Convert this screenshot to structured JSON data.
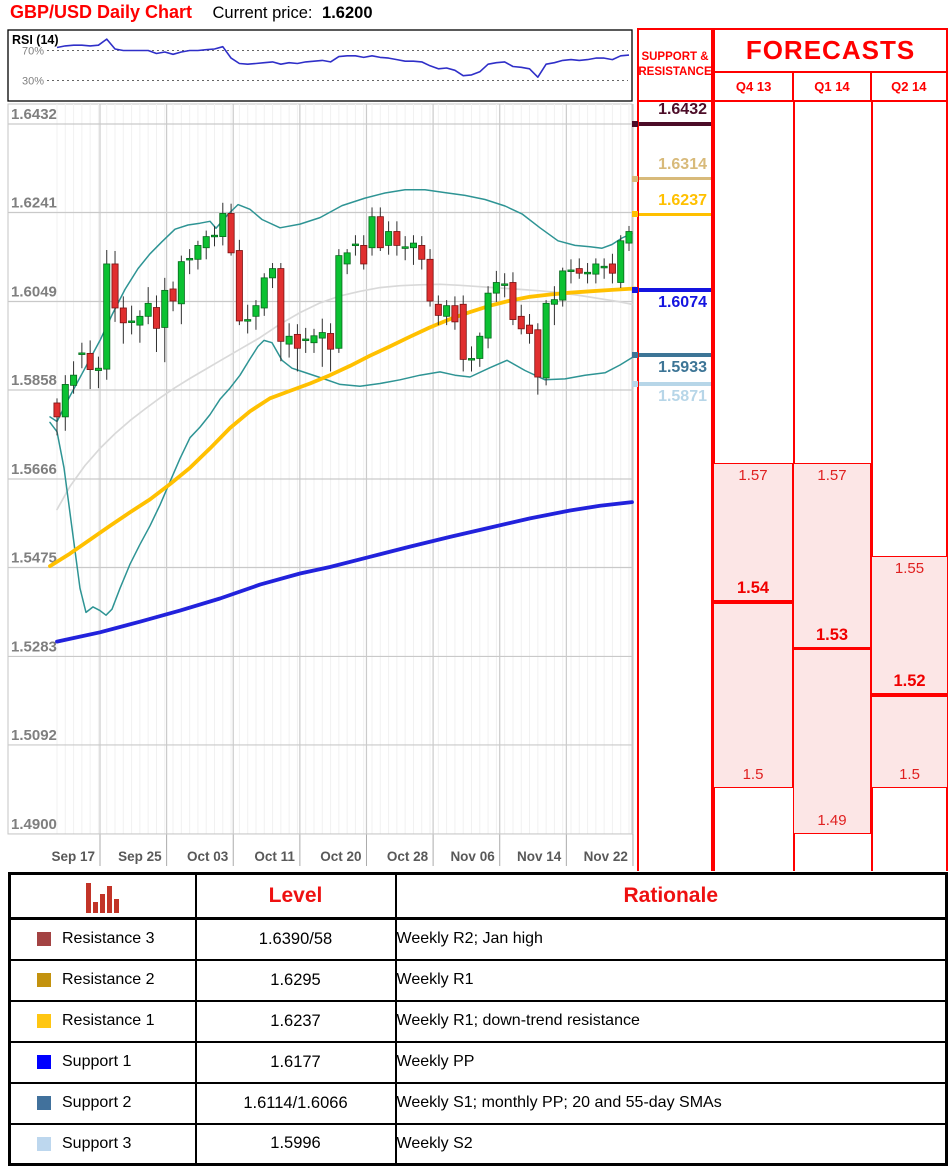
{
  "header": {
    "title": "GBP/USD Daily Chart",
    "current_price_label": "Current price:",
    "current_price": "1.6200"
  },
  "chart_data": {
    "type": "candlestick",
    "title": "GBP/USD Daily Chart",
    "ylim": [
      1.49,
      1.6432
    ],
    "y_axis_labels": [
      "1.6432",
      "1.6241",
      "1.6049",
      "1.5858",
      "1.5666",
      "1.5475",
      "1.5283",
      "1.5092",
      "1.4900"
    ],
    "x_axis_labels": [
      "Sep 17",
      "Sep 25",
      "Oct 03",
      "Oct 11",
      "Oct 20",
      "Oct 28",
      "Nov 06",
      "Nov 14",
      "Nov 22"
    ],
    "grid": true,
    "colors": {
      "up": "#0BC132",
      "down": "#E02F2F",
      "bb": "#2E9494",
      "sma55": "#FFC000",
      "sma200": "#2222DC",
      "sma100": "#D9D9D9"
    },
    "candles": [
      [
        1.583,
        1.584,
        1.576,
        1.58
      ],
      [
        1.58,
        1.589,
        1.577,
        1.587
      ],
      [
        1.5868,
        1.592,
        1.585,
        1.589
      ],
      [
        1.5935,
        1.596,
        1.5905,
        1.5938
      ],
      [
        1.5937,
        1.5965,
        1.586,
        1.5902
      ],
      [
        1.59,
        1.593,
        1.5862,
        1.5905
      ],
      [
        1.5903,
        1.616,
        1.588,
        1.613
      ],
      [
        1.613,
        1.6158,
        1.6005,
        1.6035
      ],
      [
        1.6035,
        1.606,
        1.5958,
        1.6003
      ],
      [
        1.6007,
        1.604,
        1.5978,
        1.6007
      ],
      [
        1.5998,
        1.603,
        1.596,
        1.6017
      ],
      [
        1.6017,
        1.608,
        1.6,
        1.6045
      ],
      [
        1.6036,
        1.6062,
        1.594,
        1.5991
      ],
      [
        1.5993,
        1.61,
        1.5918,
        1.6073
      ],
      [
        1.6076,
        1.6092,
        1.6028,
        1.605
      ],
      [
        1.6044,
        1.6148,
        1.6,
        1.6135
      ],
      [
        1.614,
        1.6162,
        1.6108,
        1.6142
      ],
      [
        1.614,
        1.618,
        1.6118,
        1.617
      ],
      [
        1.6165,
        1.6202,
        1.614,
        1.6189
      ],
      [
        1.619,
        1.6212,
        1.6168,
        1.6192
      ],
      [
        1.6189,
        1.6262,
        1.617,
        1.6239
      ],
      [
        1.6239,
        1.626,
        1.6148,
        1.6154
      ],
      [
        1.6159,
        1.6182,
        1.5998,
        1.6007
      ],
      [
        1.6007,
        1.6042,
        1.598,
        1.601
      ],
      [
        1.6017,
        1.6052,
        1.5988,
        1.604
      ],
      [
        1.6035,
        1.611,
        1.6018,
        1.61
      ],
      [
        1.61,
        1.6132,
        1.6078,
        1.612
      ],
      [
        1.612,
        1.6132,
        1.592,
        1.5963
      ],
      [
        1.5957,
        1.6002,
        1.5928,
        1.5974
      ],
      [
        1.5978,
        1.6,
        1.5898,
        1.5948
      ],
      [
        1.5968,
        1.5992,
        1.5938,
        1.5968
      ],
      [
        1.596,
        1.599,
        1.5938,
        1.5975
      ],
      [
        1.597,
        1.6012,
        1.5908,
        1.5982
      ],
      [
        1.598,
        1.6002,
        1.5898,
        1.5946
      ],
      [
        1.5948,
        1.6162,
        1.5938,
        1.6148
      ],
      [
        1.613,
        1.6162,
        1.6108,
        1.6154
      ],
      [
        1.6173,
        1.6192,
        1.6148,
        1.6173
      ],
      [
        1.617,
        1.6192,
        1.6118,
        1.613
      ],
      [
        1.6165,
        1.6252,
        1.6148,
        1.6232
      ],
      [
        1.6232,
        1.6252,
        1.6158,
        1.6165
      ],
      [
        1.617,
        1.6222,
        1.615,
        1.62
      ],
      [
        1.62,
        1.6222,
        1.6148,
        1.617
      ],
      [
        1.6167,
        1.619,
        1.6138,
        1.6167
      ],
      [
        1.6165,
        1.6192,
        1.6128,
        1.6175
      ],
      [
        1.617,
        1.619,
        1.6118,
        1.614
      ],
      [
        1.614,
        1.6162,
        1.6038,
        1.605
      ],
      [
        1.6043,
        1.6062,
        1.5998,
        1.6019
      ],
      [
        1.6017,
        1.6052,
        1.5998,
        1.604
      ],
      [
        1.604,
        1.606,
        1.5988,
        1.6005
      ],
      [
        1.6043,
        1.6062,
        1.5898,
        1.5924
      ],
      [
        1.5926,
        1.5952,
        1.5898,
        1.5926
      ],
      [
        1.5926,
        1.5982,
        1.5908,
        1.5974
      ],
      [
        1.597,
        1.6082,
        1.5948,
        1.6067
      ],
      [
        1.6067,
        1.6115,
        1.6048,
        1.609
      ],
      [
        1.6087,
        1.611,
        1.6058,
        1.6087
      ],
      [
        1.609,
        1.6112,
        1.5998,
        1.601
      ],
      [
        1.6017,
        1.6042,
        1.5978,
        1.599
      ],
      [
        1.5998,
        1.6022,
        1.5958,
        1.598
      ],
      [
        1.5988,
        1.6002,
        1.5848,
        1.5886
      ],
      [
        1.5884,
        1.6052,
        1.5868,
        1.6045
      ],
      [
        1.6043,
        1.6082,
        1.5998,
        1.6053
      ],
      [
        1.6052,
        1.6122,
        1.6038,
        1.6115
      ],
      [
        1.6117,
        1.614,
        1.6088,
        1.6117
      ],
      [
        1.612,
        1.6142,
        1.6098,
        1.611
      ],
      [
        1.6112,
        1.6132,
        1.6088,
        1.6112
      ],
      [
        1.6108,
        1.6142,
        1.6088,
        1.613
      ],
      [
        1.6125,
        1.6142,
        1.6098,
        1.6125
      ],
      [
        1.613,
        1.6152,
        1.6088,
        1.611
      ],
      [
        1.609,
        1.6192,
        1.6078,
        1.618
      ],
      [
        1.6175,
        1.6212,
        1.6158,
        1.62
      ]
    ],
    "overlays": {
      "sma100_gray": [
        [
          57,
          1.56
        ],
        [
          70,
          1.565
        ],
        [
          85,
          1.5695
        ],
        [
          100,
          1.5732
        ],
        [
          115,
          1.5764
        ],
        [
          130,
          1.5792
        ],
        [
          145,
          1.5817
        ],
        [
          160,
          1.5841
        ],
        [
          175,
          1.5863
        ],
        [
          190,
          1.5883
        ],
        [
          205,
          1.5902
        ],
        [
          220,
          1.5921
        ],
        [
          240,
          1.5946
        ],
        [
          260,
          1.5971
        ],
        [
          280,
          1.6
        ],
        [
          300,
          1.6025
        ],
        [
          320,
          1.6046
        ],
        [
          340,
          1.6061
        ],
        [
          360,
          1.6071
        ],
        [
          380,
          1.6079
        ],
        [
          400,
          1.6083
        ],
        [
          420,
          1.6085
        ],
        [
          440,
          1.6086
        ],
        [
          460,
          1.6084
        ],
        [
          480,
          1.6081
        ],
        [
          500,
          1.6078
        ],
        [
          520,
          1.6075
        ],
        [
          540,
          1.6072
        ],
        [
          560,
          1.6068
        ],
        [
          580,
          1.6062
        ],
        [
          600,
          1.6055
        ],
        [
          620,
          1.6048
        ],
        [
          632,
          1.6043
        ]
      ],
      "bb_upper_teal": [
        [
          50,
          1.58
        ],
        [
          57,
          1.579
        ],
        [
          70,
          1.5845
        ],
        [
          85,
          1.5905
        ],
        [
          100,
          1.5965
        ],
        [
          112,
          1.602
        ],
        [
          125,
          1.6075
        ],
        [
          138,
          1.612
        ],
        [
          150,
          1.6152
        ],
        [
          162,
          1.6178
        ],
        [
          175,
          1.6205
        ],
        [
          188,
          1.6214
        ],
        [
          200,
          1.6218
        ],
        [
          210,
          1.6222
        ],
        [
          216,
          1.6207
        ],
        [
          228,
          1.6237
        ],
        [
          238,
          1.6258
        ],
        [
          250,
          1.6248
        ],
        [
          262,
          1.6226
        ],
        [
          280,
          1.6208
        ],
        [
          300,
          1.6216
        ],
        [
          320,
          1.623
        ],
        [
          342,
          1.6256
        ],
        [
          365,
          1.6272
        ],
        [
          385,
          1.6283
        ],
        [
          405,
          1.629
        ],
        [
          425,
          1.629
        ],
        [
          445,
          1.6284
        ],
        [
          465,
          1.6278
        ],
        [
          485,
          1.6269
        ],
        [
          505,
          1.6255
        ],
        [
          522,
          1.6238
        ],
        [
          540,
          1.6208
        ],
        [
          558,
          1.618
        ],
        [
          575,
          1.617
        ],
        [
          590,
          1.6167
        ],
        [
          602,
          1.6164
        ],
        [
          612,
          1.6172
        ],
        [
          622,
          1.6186
        ],
        [
          632,
          1.6196
        ]
      ],
      "bb_lower_teal": [
        [
          50,
          1.5788
        ],
        [
          57,
          1.5768
        ],
        [
          64,
          1.569
        ],
        [
          72,
          1.556
        ],
        [
          80,
          1.543
        ],
        [
          86,
          1.5378
        ],
        [
          93,
          1.539
        ],
        [
          100,
          1.5382
        ],
        [
          106,
          1.5372
        ],
        [
          112,
          1.5385
        ],
        [
          120,
          1.543
        ],
        [
          130,
          1.5482
        ],
        [
          140,
          1.5525
        ],
        [
          150,
          1.5565
        ],
        [
          160,
          1.561
        ],
        [
          170,
          1.566
        ],
        [
          180,
          1.571
        ],
        [
          190,
          1.5755
        ],
        [
          200,
          1.5778
        ],
        [
          210,
          1.5805
        ],
        [
          220,
          1.5838
        ],
        [
          230,
          1.5862
        ],
        [
          240,
          1.589
        ],
        [
          250,
          1.5925
        ],
        [
          258,
          1.5952
        ],
        [
          264,
          1.5965
        ],
        [
          272,
          1.596
        ],
        [
          282,
          1.5922
        ],
        [
          292,
          1.5905
        ],
        [
          302,
          1.5898
        ],
        [
          320,
          1.5885
        ],
        [
          340,
          1.587
        ],
        [
          360,
          1.5866
        ],
        [
          380,
          1.5872
        ],
        [
          400,
          1.588
        ],
        [
          420,
          1.589
        ],
        [
          440,
          1.5897
        ],
        [
          455,
          1.589
        ],
        [
          470,
          1.5886
        ],
        [
          490,
          1.5906
        ],
        [
          507,
          1.5922
        ],
        [
          525,
          1.59
        ],
        [
          545,
          1.588
        ],
        [
          565,
          1.5882
        ],
        [
          585,
          1.589
        ],
        [
          605,
          1.5895
        ],
        [
          620,
          1.5912
        ],
        [
          632,
          1.5928
        ]
      ],
      "sma55_yellow": [
        [
          50,
          1.5478
        ],
        [
          70,
          1.5505
        ],
        [
          90,
          1.5535
        ],
        [
          110,
          1.5565
        ],
        [
          130,
          1.5594
        ],
        [
          150,
          1.5622
        ],
        [
          170,
          1.5655
        ],
        [
          190,
          1.569
        ],
        [
          210,
          1.5732
        ],
        [
          230,
          1.5776
        ],
        [
          250,
          1.5812
        ],
        [
          270,
          1.584
        ],
        [
          290,
          1.5856
        ],
        [
          310,
          1.5872
        ],
        [
          330,
          1.589
        ],
        [
          350,
          1.591
        ],
        [
          370,
          1.5932
        ],
        [
          390,
          1.5952
        ],
        [
          410,
          1.5973
        ],
        [
          430,
          1.5993
        ],
        [
          450,
          1.6011
        ],
        [
          470,
          1.6026
        ],
        [
          490,
          1.604
        ],
        [
          510,
          1.6051
        ],
        [
          530,
          1.6059
        ],
        [
          550,
          1.6064
        ],
        [
          570,
          1.6068
        ],
        [
          590,
          1.6071
        ],
        [
          612,
          1.6074
        ],
        [
          635,
          1.6077
        ]
      ],
      "sma200_blue": [
        [
          57,
          1.5315
        ],
        [
          100,
          1.5335
        ],
        [
          140,
          1.5358
        ],
        [
          180,
          1.5382
        ],
        [
          220,
          1.5408
        ],
        [
          260,
          1.5438
        ],
        [
          300,
          1.5462
        ],
        [
          330,
          1.5476
        ],
        [
          370,
          1.5498
        ],
        [
          410,
          1.552
        ],
        [
          450,
          1.5541
        ],
        [
          490,
          1.5561
        ],
        [
          530,
          1.5581
        ],
        [
          570,
          1.5598
        ],
        [
          600,
          1.5608
        ],
        [
          632,
          1.5616
        ]
      ]
    },
    "rsi": {
      "label": "RSI (14)",
      "upper_label": "70%",
      "lower_label": "30%",
      "line_color": "#2F2FC8",
      "values": [
        74,
        76,
        77,
        77,
        76,
        77,
        85,
        72,
        70,
        70,
        70,
        70,
        66,
        68,
        65,
        68,
        70,
        70,
        71,
        72,
        75,
        60,
        53,
        52,
        53,
        54,
        55,
        52,
        54,
        53,
        55,
        56,
        57,
        55,
        62,
        63,
        63,
        61,
        63,
        61,
        60,
        58,
        56,
        56,
        55,
        50,
        46,
        47,
        44,
        37,
        38,
        42,
        52,
        54,
        55,
        49,
        48,
        46,
        35,
        52,
        54,
        57,
        58,
        57,
        58,
        60,
        60,
        58,
        63,
        64
      ]
    }
  },
  "sr_column": {
    "header_line1": "SUPPORT &",
    "header_line2": "RESISTANCE",
    "levels": [
      {
        "value": 1.6432,
        "label": "1.6432",
        "color": "#4C0D28",
        "label_side": "above",
        "thickness": 4
      },
      {
        "value": 1.6314,
        "label": "1.6314",
        "color": "#D8BA7A",
        "label_side": "above",
        "thickness": 3
      },
      {
        "value": 1.6237,
        "label": "1.6237",
        "color": "#FFC000",
        "label_side": "above",
        "thickness": 3.5
      },
      {
        "value": 1.6074,
        "label": "1.6074",
        "color": "#1414E0",
        "label_side": "below",
        "thickness": 4
      },
      {
        "value": 1.5933,
        "label": "1.5933",
        "color": "#3D7596",
        "label_side": "below",
        "thickness": 3.5
      },
      {
        "value": 1.5871,
        "label": "1.5871",
        "color": "#B7D6E8",
        "label_side": "below",
        "thickness": 3.5
      }
    ]
  },
  "forecasts": {
    "title": "FORECASTS",
    "columns": [
      {
        "label": "Q4 13",
        "high": 1.57,
        "low": 1.5,
        "central": 1.54,
        "high_label": "1.57",
        "low_label": "1.5",
        "central_label": "1.54"
      },
      {
        "label": "Q1 14",
        "high": 1.57,
        "low": 1.49,
        "central": 1.53,
        "high_label": "1.57",
        "low_label": "1.49",
        "central_label": "1.53"
      },
      {
        "label": "Q2 14",
        "high": 1.55,
        "low": 1.5,
        "central": 1.52,
        "high_label": "1.55",
        "low_label": "1.5",
        "central_label": "1.52"
      }
    ]
  },
  "table": {
    "level_header": "Level",
    "rationale_header": "Rationale",
    "rows": [
      {
        "marker": "#A34343",
        "name": "Resistance 3",
        "level": "1.6390/58",
        "rationale": "Weekly R2; Jan high"
      },
      {
        "marker": "#C3920E",
        "name": "Resistance 2",
        "level": "1.6295",
        "rationale": "Weekly R1"
      },
      {
        "marker": "#FFC612",
        "name": "Resistance 1",
        "level": "1.6237",
        "rationale": "Weekly R1; down-trend resistance"
      },
      {
        "marker": "#0000FF",
        "name": "Support 1",
        "level": "1.6177",
        "rationale": "Weekly PP"
      },
      {
        "marker": "#41719C",
        "name": "Support 2",
        "level": "1.6114/1.6066",
        "rationale": "Weekly S1; monthly PP; 20 and 55-day SMAs"
      },
      {
        "marker": "#BDD7EE",
        "name": "Support 3",
        "level": "1.5996",
        "rationale": "Weekly S2"
      }
    ]
  }
}
